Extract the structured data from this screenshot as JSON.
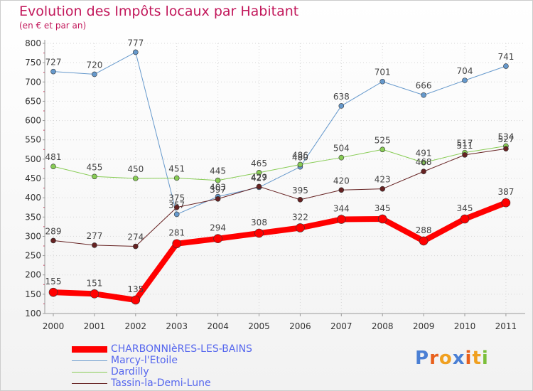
{
  "header": {
    "title": "Evolution des Impôts locaux par Habitant",
    "subtitle": "(en € et par an)"
  },
  "logo": {
    "text": "Proxiti"
  },
  "colors": {
    "charbonnieres": "#ff0000",
    "marcy": "#6699cc",
    "dardilly": "#88cc55",
    "tassin": "#662222",
    "title": "#c2185b",
    "legend_text": "#5566ee"
  },
  "chart_data": {
    "type": "line",
    "title": "Evolution des Impôts locaux par Habitant",
    "subtitle": "(en € et par an)",
    "xlabel": "",
    "ylabel": "",
    "categories": [
      "2000",
      "2001",
      "2002",
      "2003",
      "2004",
      "2005",
      "2006",
      "2007",
      "2008",
      "2009",
      "2010",
      "2011"
    ],
    "ylim": [
      100,
      800
    ],
    "yticks": [
      100,
      150,
      200,
      250,
      300,
      350,
      400,
      450,
      500,
      550,
      600,
      650,
      700,
      750,
      800
    ],
    "grid": true,
    "legend_position": "bottom-left",
    "series": [
      {
        "name": "CHARBONNIèRES-LES-BAINS",
        "key": "charbonnieres",
        "values": [
          155,
          151,
          135,
          281,
          294,
          308,
          322,
          344,
          345,
          288,
          345,
          387
        ]
      },
      {
        "name": "Marcy-l'Etoile",
        "key": "marcy",
        "values": [
          727,
          720,
          777,
          357,
          403,
          427,
          480,
          638,
          701,
          666,
          704,
          741
        ]
      },
      {
        "name": "Dardilly",
        "key": "dardilly",
        "values": [
          481,
          455,
          450,
          451,
          445,
          465,
          486,
          504,
          525,
          491,
          517,
          534
        ]
      },
      {
        "name": "Tassin-la-Demi-Lune",
        "key": "tassin",
        "values": [
          289,
          277,
          274,
          375,
          397,
          429,
          395,
          420,
          423,
          468,
          511,
          527
        ]
      }
    ]
  }
}
